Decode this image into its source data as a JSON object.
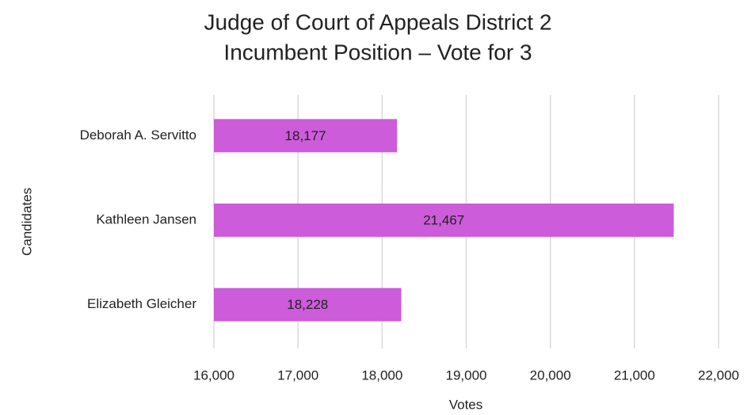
{
  "chart_data": {
    "type": "hbar",
    "title": "Judge of Court of Appeals District 2",
    "subtitle": "Incumbent Position – Vote for 3",
    "x_label": "Votes",
    "y_label": "Candidates",
    "categories": [
      "Deborah A. Servitto",
      "Kathleen Jansen",
      "Elizabeth Gleicher"
    ],
    "values": [
      18177,
      21467,
      18228
    ],
    "value_labels": [
      "18,177",
      "21,467",
      "18,228"
    ],
    "color": "#cc5cd9",
    "xlim": [
      16000,
      22000
    ],
    "xticks": [
      {
        "value": 16000,
        "label": "16,000"
      },
      {
        "value": 17000,
        "label": "17,000"
      },
      {
        "value": 18000,
        "label": "18,000"
      },
      {
        "value": 19000,
        "label": "19,000"
      },
      {
        "value": 20000,
        "label": "20,000"
      },
      {
        "value": 21000,
        "label": "21,000"
      },
      {
        "value": 22000,
        "label": "22,000"
      }
    ],
    "grid": true
  }
}
